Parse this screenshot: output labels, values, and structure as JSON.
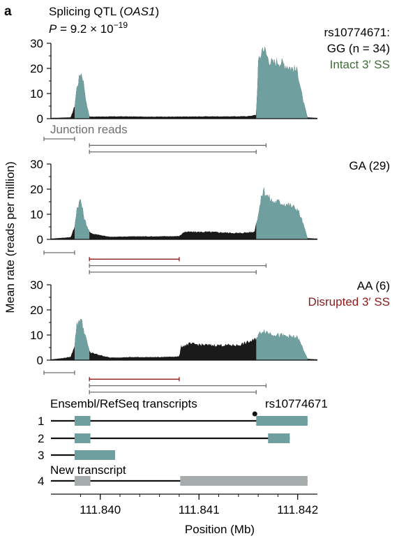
{
  "panel_letter": "a",
  "title": "Splicing QTL (OAS1)",
  "title_plain": "Splicing QTL (",
  "title_gene": "OAS1",
  "title_close": ")",
  "pvalue": {
    "p": "P",
    "eq": " = 9.2 × 10",
    "exp": "−19"
  },
  "ylabel": "Mean rate (reads per million)",
  "xlabel": "Position (Mb)",
  "junction_label": "Junction reads",
  "transcripts_label": "Ensembl/RefSeq transcripts",
  "new_transcript_label": "New transcript",
  "snp_label": "rs10774671",
  "colors": {
    "exon": "#6fa09f",
    "intron_signal": "#1a1a1a",
    "intact": "#3d6b35",
    "disrupted": "#8b1a1a",
    "junction_gray": "#6e6e6e",
    "new_exon": "#a6abab"
  },
  "panels": [
    {
      "header_lines": [
        "rs10774671:",
        "GG (n = 34)"
      ],
      "status": "Intact 3′ SS",
      "status_color": "intact"
    },
    {
      "header_lines": [
        "GA (29)"
      ],
      "status": "",
      "status_color": ""
    },
    {
      "header_lines": [
        "AA (6)"
      ],
      "status": "Disrupted 3′ SS",
      "status_color": "disrupted"
    }
  ],
  "transcript_numbers": [
    "1",
    "2",
    "3",
    "4"
  ],
  "chart_data": {
    "type": "area",
    "xlim": [
      111.8395,
      111.8422
    ],
    "xticks": [
      111.84,
      111.841,
      111.842
    ],
    "xtick_labels": [
      "111.840",
      "111.841",
      "111.842"
    ],
    "ylim": [
      0,
      30
    ],
    "yticks": [
      0,
      10,
      20,
      30
    ],
    "exons_mb": [
      [
        111.83974,
        111.83989
      ],
      [
        111.84158,
        111.8421
      ]
    ],
    "series": [
      {
        "name": "GG (n = 34)",
        "x": [
          111.8395,
          111.8396,
          111.8397,
          111.83974,
          111.83976,
          111.8398,
          111.83982,
          111.83984,
          111.83986,
          111.83989,
          111.8399,
          111.8402,
          111.8405,
          111.8408,
          111.8411,
          111.8414,
          111.8415,
          111.84158,
          111.8416,
          111.84165,
          111.8417,
          111.84175,
          111.8418,
          111.8419,
          111.842,
          111.84205,
          111.8421,
          111.8422
        ],
        "y": [
          0.3,
          0.4,
          0.5,
          5,
          12,
          18.5,
          17,
          12,
          6,
          1,
          0.8,
          0.9,
          0.8,
          0.8,
          0.9,
          0.9,
          1,
          1.5,
          22,
          29,
          24,
          22,
          23,
          21,
          19,
          8,
          0.5,
          0.3
        ]
      },
      {
        "name": "GA (29)",
        "x": [
          111.8395,
          111.8396,
          111.8397,
          111.83974,
          111.83976,
          111.8398,
          111.83982,
          111.83984,
          111.83988,
          111.8399,
          111.8401,
          111.8403,
          111.8406,
          111.8408,
          111.84085,
          111.8411,
          111.8414,
          111.84156,
          111.8416,
          111.84165,
          111.8417,
          111.84175,
          111.8418,
          111.8419,
          111.842,
          111.84205,
          111.8421,
          111.8422
        ],
        "y": [
          0.3,
          0.6,
          0.9,
          5,
          12,
          16,
          12,
          8,
          4,
          2.5,
          1,
          1.2,
          1.2,
          1.3,
          3,
          3,
          2.5,
          3,
          10,
          20,
          17,
          15,
          15,
          14,
          12,
          7,
          0.5,
          0.3
        ]
      },
      {
        "name": "AA (6)",
        "x": [
          111.8395,
          111.8396,
          111.8397,
          111.83974,
          111.83976,
          111.8398,
          111.83982,
          111.83984,
          111.83988,
          111.8399,
          111.8401,
          111.8403,
          111.8406,
          111.8408,
          111.84082,
          111.8409,
          111.8411,
          111.8414,
          111.84156,
          111.8416,
          111.84165,
          111.8417,
          111.8418,
          111.8419,
          111.842,
          111.84205,
          111.8421,
          111.8422
        ],
        "y": [
          0.3,
          0.7,
          1.3,
          6,
          14,
          17,
          14,
          11,
          5,
          3,
          1,
          1.2,
          1.2,
          1.5,
          5.5,
          6.5,
          6,
          6,
          8,
          10,
          12,
          11,
          10,
          9.5,
          9,
          5,
          0.5,
          0.3
        ]
      }
    ],
    "junctions": [
      [
        {
          "x0": 111.8395,
          "x1": 111.83974,
          "type": "normal"
        },
        {
          "x0": 111.83989,
          "x1": 111.84168,
          "type": "normal"
        },
        {
          "x0": 111.83989,
          "x1": 111.84158,
          "type": "normal"
        }
      ],
      [
        {
          "x0": 111.8395,
          "x1": 111.83974,
          "type": "normal"
        },
        {
          "x0": 111.83989,
          "x1": 111.8408,
          "type": "novel"
        },
        {
          "x0": 111.83989,
          "x1": 111.84168,
          "type": "normal"
        },
        {
          "x0": 111.83989,
          "x1": 111.84158,
          "type": "normal"
        }
      ],
      [
        {
          "x0": 111.8395,
          "x1": 111.83974,
          "type": "normal"
        },
        {
          "x0": 111.83989,
          "x1": 111.8408,
          "type": "novel"
        },
        {
          "x0": 111.83989,
          "x1": 111.84168,
          "type": "normal"
        },
        {
          "x0": 111.83989,
          "x1": 111.84158,
          "type": "normal"
        }
      ]
    ],
    "transcripts": [
      {
        "id": "1",
        "start": 111.8395,
        "end": 111.8421,
        "exons": [
          [
            111.83974,
            111.8399
          ],
          [
            111.84158,
            111.8421
          ]
        ],
        "color": "exon"
      },
      {
        "id": "2",
        "start": 111.8395,
        "end": 111.84192,
        "exons": [
          [
            111.83974,
            111.8399
          ],
          [
            111.8417,
            111.84192
          ]
        ],
        "color": "exon"
      },
      {
        "id": "3",
        "start": 111.8395,
        "end": 111.84015,
        "exons": [
          [
            111.83974,
            111.84015
          ]
        ],
        "color": "exon"
      },
      {
        "id": "4",
        "start": 111.8395,
        "end": 111.8421,
        "exons": [
          [
            111.83974,
            111.8399
          ],
          [
            111.84081,
            111.8421
          ]
        ],
        "color": "new_exon"
      }
    ],
    "snp_position": 111.84158
  }
}
